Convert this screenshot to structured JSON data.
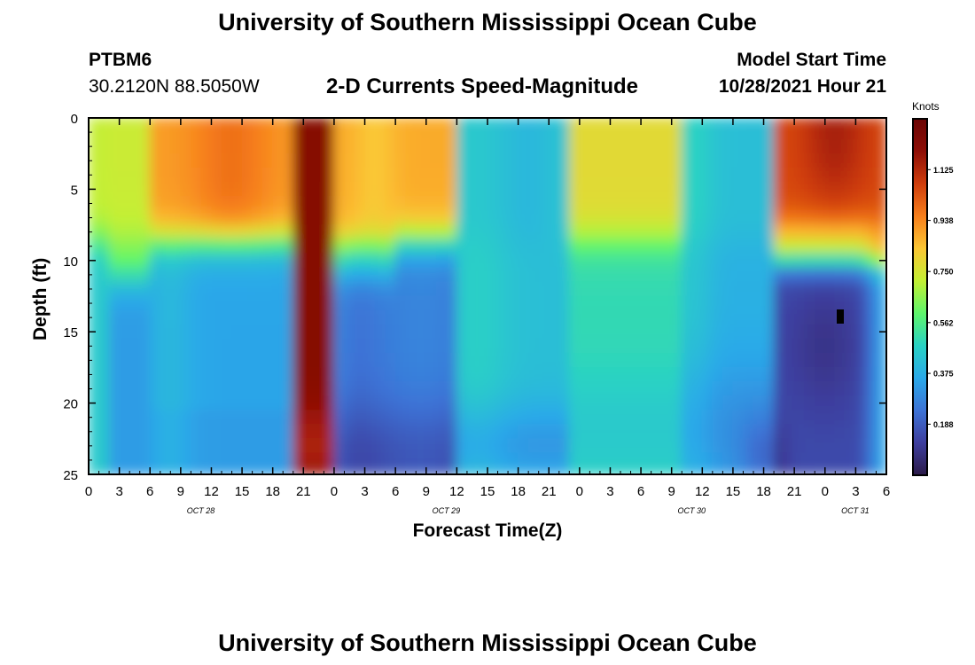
{
  "page": {
    "title": "University of Southern Mississippi Ocean Cube",
    "footer_title": "University of Southern Mississippi Ocean Cube",
    "station_id": "PTBM6",
    "coordinates": "30.2120N  88.5050W",
    "subtitle": "2-D Currents Speed-Magnitude",
    "model_start_label": "Model Start Time",
    "model_start_value": "10/28/2021 Hour 21"
  },
  "chart_data": {
    "type": "heatmap",
    "title": "2-D Currents Speed-Magnitude",
    "xlabel": "Forecast Time(Z)",
    "ylabel": "Depth (ft)",
    "x_tick_labels": [
      "0",
      "3",
      "6",
      "9",
      "12",
      "15",
      "18",
      "21",
      "0",
      "3",
      "6",
      "9",
      "12",
      "15",
      "18",
      "21",
      "0",
      "3",
      "6",
      "9",
      "12",
      "15",
      "18",
      "21",
      "0",
      "3",
      "6"
    ],
    "x_day_labels": [
      "OCT 28",
      "OCT 29",
      "OCT 30",
      "OCT 31"
    ],
    "y_tick_labels": [
      "0",
      "5",
      "10",
      "15",
      "20",
      "25"
    ],
    "ylim": [
      0,
      25
    ],
    "xlim_hours": [
      0,
      78
    ],
    "y_inverted": true,
    "colorbar": {
      "title": "Knots",
      "tick_labels": [
        "1.125",
        "0.938",
        "0.750",
        "0.562",
        "0.375",
        "0.188"
      ],
      "range": [
        0,
        1.312
      ]
    },
    "colormap": [
      "#2b1a48",
      "#3e3e9e",
      "#3d73d6",
      "#2aa9e9",
      "#29d2c4",
      "#5ff56b",
      "#c3f034",
      "#fbc634",
      "#f77f1c",
      "#cf3d0c",
      "#8e0e06",
      "#6a0404"
    ],
    "grid": false,
    "features": [
      {
        "name": "surface maximum",
        "hours": [
          0,
          6
        ],
        "depth_ft": [
          0,
          9
        ],
        "speed_knots": 0.7
      },
      {
        "name": "surface maximum",
        "hours": [
          6,
          19
        ],
        "depth_ft": [
          0,
          9
        ],
        "speed_knots": 0.95
      },
      {
        "name": "full-depth maximum",
        "hours": [
          19,
          24
        ],
        "depth_ft": [
          0,
          25
        ],
        "speed_knots": 1.2
      },
      {
        "name": "surface maximum",
        "hours": [
          24,
          36
        ],
        "depth_ft": [
          0,
          9
        ],
        "speed_knots": 0.9
      },
      {
        "name": "surface maximum",
        "hours": [
          48,
          57
        ],
        "depth_ft": [
          0,
          9
        ],
        "speed_knots": 0.78
      },
      {
        "name": "surface maximum",
        "hours": [
          68,
          77
        ],
        "depth_ft": [
          0,
          8
        ],
        "speed_knots": 1.05
      },
      {
        "name": "subsurface minimum",
        "hours": [
          63,
          77
        ],
        "depth_ft": [
          12,
          25
        ],
        "speed_knots": 0.1
      }
    ]
  }
}
